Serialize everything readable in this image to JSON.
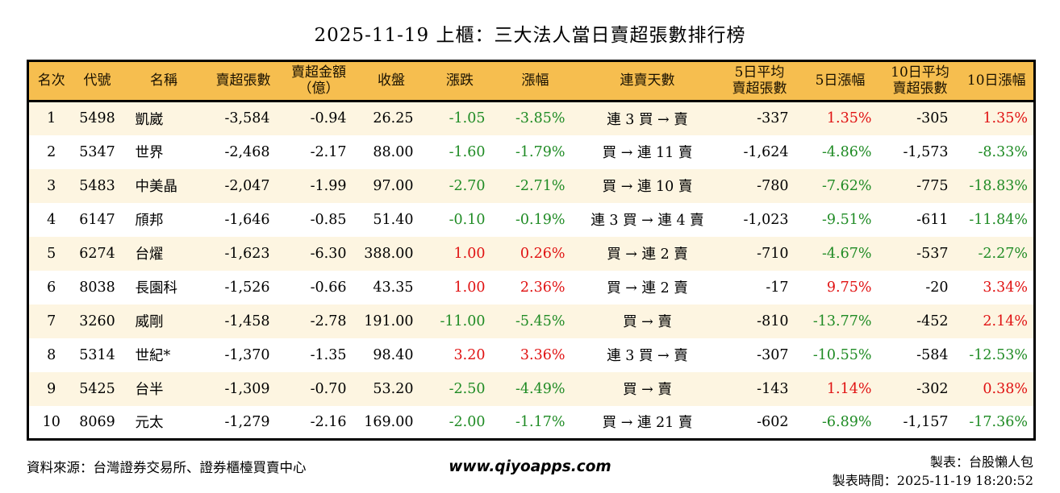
{
  "title": "2025-11-19 上櫃：三大法人當日賣超張數排行榜",
  "colors": {
    "up": "#e01212",
    "down": "#1f8b24",
    "header_bg": "#f6be4f",
    "row_alt": "#fdf5e1"
  },
  "table": {
    "columns": [
      {
        "key": "rank",
        "label": "名次"
      },
      {
        "key": "code",
        "label": "代號"
      },
      {
        "key": "name",
        "label": "名稱"
      },
      {
        "key": "net_sell",
        "label": "賣超張數"
      },
      {
        "key": "amount",
        "label": "賣超金額\n（億）"
      },
      {
        "key": "close",
        "label": "收盤"
      },
      {
        "key": "change",
        "label": "漲跌"
      },
      {
        "key": "change_pct",
        "label": "漲幅"
      },
      {
        "key": "streak",
        "label": "連賣天數"
      },
      {
        "key": "avg5",
        "label": "5日平均\n賣超張數"
      },
      {
        "key": "pct5",
        "label": "5日漲幅"
      },
      {
        "key": "avg10",
        "label": "10日平均\n賣超張數"
      },
      {
        "key": "pct10",
        "label": "10日漲幅"
      }
    ],
    "colored_columns": [
      "change",
      "change_pct",
      "pct5",
      "pct10"
    ],
    "rows": [
      {
        "rank": "1",
        "code": "5498",
        "name": "凱崴",
        "net_sell": "-3,584",
        "amount": "-0.94",
        "close": "26.25",
        "change": "-1.05",
        "change_pct": "-3.85%",
        "streak": "連 3 買 → 賣",
        "avg5": "-337",
        "pct5": "1.35%",
        "avg10": "-305",
        "pct10": "1.35%"
      },
      {
        "rank": "2",
        "code": "5347",
        "name": "世界",
        "net_sell": "-2,468",
        "amount": "-2.17",
        "close": "88.00",
        "change": "-1.60",
        "change_pct": "-1.79%",
        "streak": "買 → 連 11 賣",
        "avg5": "-1,624",
        "pct5": "-4.86%",
        "avg10": "-1,573",
        "pct10": "-8.33%"
      },
      {
        "rank": "3",
        "code": "5483",
        "name": "中美晶",
        "net_sell": "-2,047",
        "amount": "-1.99",
        "close": "97.00",
        "change": "-2.70",
        "change_pct": "-2.71%",
        "streak": "買 → 連 10 賣",
        "avg5": "-780",
        "pct5": "-7.62%",
        "avg10": "-775",
        "pct10": "-18.83%"
      },
      {
        "rank": "4",
        "code": "6147",
        "name": "頎邦",
        "net_sell": "-1,646",
        "amount": "-0.85",
        "close": "51.40",
        "change": "-0.10",
        "change_pct": "-0.19%",
        "streak": "連 3 買 → 連 4 賣",
        "avg5": "-1,023",
        "pct5": "-9.51%",
        "avg10": "-611",
        "pct10": "-11.84%"
      },
      {
        "rank": "5",
        "code": "6274",
        "name": "台燿",
        "net_sell": "-1,623",
        "amount": "-6.30",
        "close": "388.00",
        "change": "1.00",
        "change_pct": "0.26%",
        "streak": "買 → 連 2 賣",
        "avg5": "-710",
        "pct5": "-4.67%",
        "avg10": "-537",
        "pct10": "-2.27%"
      },
      {
        "rank": "6",
        "code": "8038",
        "name": "長園科",
        "net_sell": "-1,526",
        "amount": "-0.66",
        "close": "43.35",
        "change": "1.00",
        "change_pct": "2.36%",
        "streak": "買 → 連 2 賣",
        "avg5": "-17",
        "pct5": "9.75%",
        "avg10": "-20",
        "pct10": "3.34%"
      },
      {
        "rank": "7",
        "code": "3260",
        "name": "威剛",
        "net_sell": "-1,458",
        "amount": "-2.78",
        "close": "191.00",
        "change": "-11.00",
        "change_pct": "-5.45%",
        "streak": "買 → 賣",
        "avg5": "-810",
        "pct5": "-13.77%",
        "avg10": "-452",
        "pct10": "2.14%"
      },
      {
        "rank": "8",
        "code": "5314",
        "name": "世紀*",
        "net_sell": "-1,370",
        "amount": "-1.35",
        "close": "98.40",
        "change": "3.20",
        "change_pct": "3.36%",
        "streak": "連 3 買 → 賣",
        "avg5": "-307",
        "pct5": "-10.55%",
        "avg10": "-584",
        "pct10": "-12.53%"
      },
      {
        "rank": "9",
        "code": "5425",
        "name": "台半",
        "net_sell": "-1,309",
        "amount": "-0.70",
        "close": "53.20",
        "change": "-2.50",
        "change_pct": "-4.49%",
        "streak": "買 → 賣",
        "avg5": "-143",
        "pct5": "1.14%",
        "avg10": "-302",
        "pct10": "0.38%"
      },
      {
        "rank": "10",
        "code": "8069",
        "name": "元太",
        "net_sell": "-1,279",
        "amount": "-2.16",
        "close": "169.00",
        "change": "-2.00",
        "change_pct": "-1.17%",
        "streak": "買 → 連 21 賣",
        "avg5": "-602",
        "pct5": "-6.89%",
        "avg10": "-1,157",
        "pct10": "-17.36%"
      }
    ]
  },
  "footer": {
    "source": "資料來源：台灣證券交易所、證券櫃檯買賣中心",
    "website": "www.qiyoapps.com",
    "maker": "製表：台股懶人包",
    "made_time": "製表時間：2025-11-19 18:20:52"
  }
}
